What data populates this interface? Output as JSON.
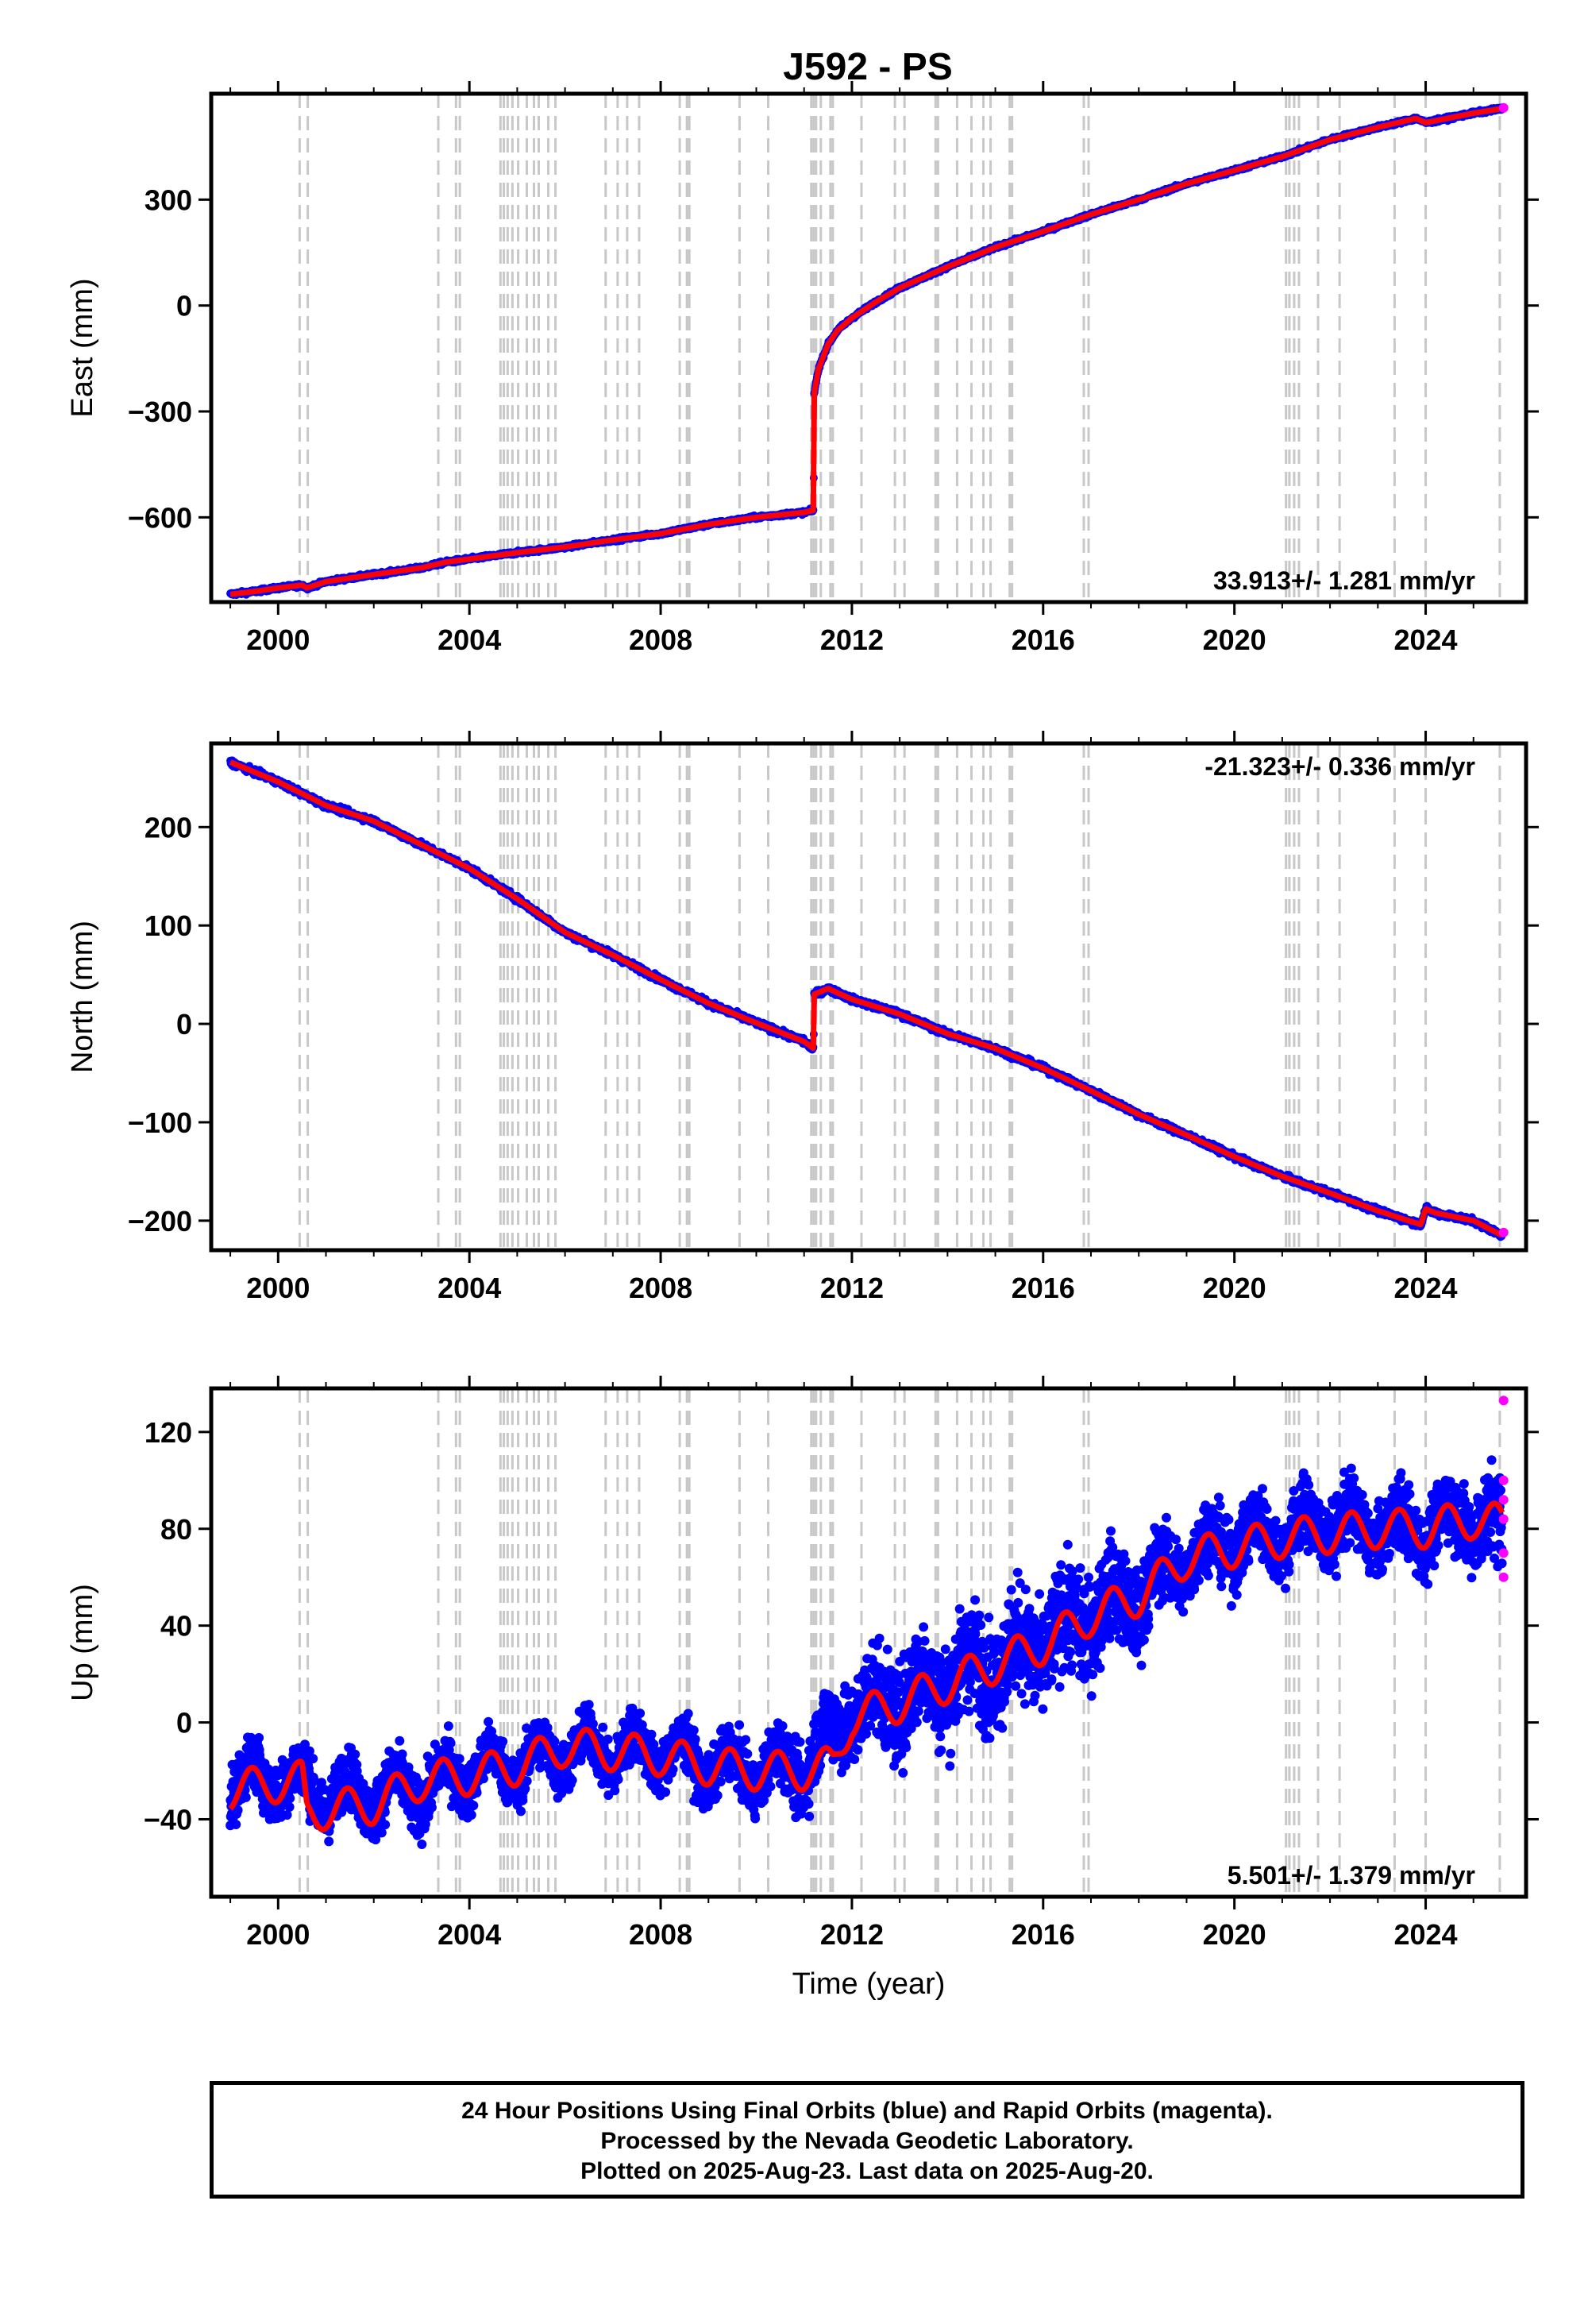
{
  "chart_data": [
    {
      "type": "scatter",
      "title": "J592 - PS",
      "ylabel": "East (mm)",
      "xlabel": "",
      "rate_label": "33.913+/- 1.281 mm/yr",
      "xlim": [
        1998.6,
        2026.1
      ],
      "ylim": [
        -840,
        600
      ],
      "xticks": [
        2000,
        2004,
        2008,
        2012,
        2016,
        2020,
        2024
      ],
      "xtick_labels": [
        "2000",
        "2004",
        "2008",
        "2012",
        "2016",
        "2020",
        "2024"
      ],
      "yticks": [
        -600,
        -300,
        0,
        300
      ],
      "ytick_labels": [
        "−600",
        "−300",
        "0",
        "300"
      ],
      "series": [
        {
          "color": "#0000ff",
          "marker": "dot",
          "x": [
            1999.0,
            1999.5,
            2000.0,
            2000.5,
            2000.6,
            2001.0,
            2002.0,
            2003.0,
            2003.5,
            2004.0,
            2005.0,
            2006.0,
            2007.0,
            2008.0,
            2009.0,
            2010.0,
            2011.0,
            2011.2,
            2011.21,
            2011.3,
            2011.5,
            2011.7,
            2012.0,
            2012.5,
            2013.0,
            2014.0,
            2015.0,
            2016.0,
            2017.0,
            2018.0,
            2019.0,
            2020.0,
            2021.0,
            2022.0,
            2023.0,
            2023.8,
            2024.0,
            2025.0,
            2025.6
          ],
          "y": [
            -818,
            -810,
            -800,
            -792,
            -800,
            -782,
            -762,
            -743,
            -727,
            -718,
            -700,
            -684,
            -664,
            -646,
            -620,
            -600,
            -586,
            -580,
            -250,
            -180,
            -110,
            -70,
            -35,
            10,
            50,
            110,
            165,
            210,
            258,
            300,
            345,
            383,
            422,
            470,
            505,
            530,
            518,
            545,
            558
          ]
        },
        {
          "color": "#ff0000",
          "marker": "line",
          "x": [
            1999.0,
            1999.5,
            2000.0,
            2000.5,
            2000.6,
            2001.0,
            2002.0,
            2003.0,
            2003.5,
            2004.0,
            2005.0,
            2006.0,
            2007.0,
            2008.0,
            2009.0,
            2010.0,
            2011.0,
            2011.2,
            2011.21,
            2011.3,
            2011.5,
            2011.7,
            2012.0,
            2012.5,
            2013.0,
            2014.0,
            2015.0,
            2016.0,
            2017.0,
            2018.0,
            2019.0,
            2020.0,
            2021.0,
            2022.0,
            2023.0,
            2023.8,
            2024.0,
            2025.0,
            2025.6
          ],
          "y": [
            -818,
            -810,
            -800,
            -792,
            -800,
            -782,
            -762,
            -743,
            -727,
            -718,
            -700,
            -684,
            -664,
            -646,
            -620,
            -600,
            -586,
            -580,
            -250,
            -180,
            -110,
            -70,
            -35,
            10,
            50,
            110,
            165,
            210,
            258,
            300,
            345,
            383,
            422,
            470,
            505,
            530,
            518,
            545,
            558
          ]
        },
        {
          "color": "#ff00ff",
          "marker": "dot",
          "x": [
            2025.63
          ],
          "y": [
            560
          ]
        }
      ]
    },
    {
      "type": "scatter",
      "title": "",
      "ylabel": "North (mm)",
      "xlabel": "",
      "rate_label": "-21.323+/- 0.336 mm/yr",
      "xlim": [
        1998.6,
        2026.1
      ],
      "ylim": [
        -230,
        285
      ],
      "xticks": [
        2000,
        2004,
        2008,
        2012,
        2016,
        2020,
        2024
      ],
      "xtick_labels": [
        "2000",
        "2004",
        "2008",
        "2012",
        "2016",
        "2020",
        "2024"
      ],
      "yticks": [
        -200,
        -100,
        0,
        100,
        200
      ],
      "ytick_labels": [
        "−200",
        "−100",
        "0",
        "100",
        "200"
      ],
      "series": [
        {
          "color": "#0000ff",
          "marker": "dot",
          "x": [
            1999.0,
            2000.0,
            2001.0,
            2002.0,
            2003.0,
            2004.0,
            2005.0,
            2006.0,
            2007.0,
            2008.0,
            2009.0,
            2010.0,
            2011.0,
            2011.2,
            2011.21,
            2011.5,
            2012.0,
            2013.0,
            2014.0,
            2015.0,
            2016.0,
            2017.0,
            2018.0,
            2019.0,
            2020.0,
            2021.0,
            2022.0,
            2023.0,
            2023.9,
            2024.0,
            2024.2,
            2025.0,
            2025.6
          ],
          "y": [
            266,
            246,
            222,
            206,
            182,
            158,
            127,
            93,
            70,
            45,
            21,
            1,
            -18,
            -25,
            30,
            36,
            25,
            10,
            -10,
            -25,
            -45,
            -68,
            -92,
            -113,
            -135,
            -155,
            -172,
            -190,
            -204,
            -188,
            -192,
            -200,
            -215
          ]
        },
        {
          "color": "#ff0000",
          "marker": "line",
          "x": [
            1999.0,
            2000.0,
            2001.0,
            2002.0,
            2003.0,
            2004.0,
            2005.0,
            2006.0,
            2007.0,
            2008.0,
            2009.0,
            2010.0,
            2011.0,
            2011.2,
            2011.21,
            2011.5,
            2012.0,
            2013.0,
            2014.0,
            2015.0,
            2016.0,
            2017.0,
            2018.0,
            2019.0,
            2020.0,
            2021.0,
            2022.0,
            2023.0,
            2023.9,
            2024.0,
            2024.2,
            2025.0,
            2025.6
          ],
          "y": [
            266,
            246,
            222,
            206,
            182,
            158,
            127,
            93,
            70,
            45,
            21,
            1,
            -18,
            -25,
            30,
            36,
            25,
            10,
            -10,
            -25,
            -45,
            -68,
            -92,
            -113,
            -135,
            -155,
            -172,
            -190,
            -204,
            -188,
            -192,
            -200,
            -215
          ]
        },
        {
          "color": "#ff00ff",
          "marker": "dot",
          "x": [
            2025.63
          ],
          "y": [
            -212
          ]
        }
      ]
    },
    {
      "type": "scatter",
      "title": "",
      "ylabel": "Up (mm)",
      "xlabel": "Time (year)",
      "rate_label": "5.501+/- 1.379 mm/yr",
      "xlim": [
        1998.6,
        2026.1
      ],
      "ylim": [
        -72,
        138
      ],
      "xticks": [
        2000,
        2004,
        2008,
        2012,
        2016,
        2020,
        2024
      ],
      "xtick_labels": [
        "2000",
        "2004",
        "2008",
        "2012",
        "2016",
        "2020",
        "2024"
      ],
      "yticks": [
        -40,
        0,
        40,
        80,
        120
      ],
      "ytick_labels": [
        "−40",
        "0",
        "40",
        "80",
        "120"
      ],
      "series": [
        {
          "color": "#0000ff",
          "marker": "dot",
          "note_type": "scatter_band",
          "x": [
            1999.0,
            2000.0,
            2001.0,
            2002.0,
            2003.0,
            2004.0,
            2005.0,
            2006.0,
            2007.0,
            2008.0,
            2009.0,
            2010.0,
            2011.0,
            2012.0,
            2013.0,
            2014.0,
            2015.0,
            2016.0,
            2017.0,
            2018.0,
            2019.0,
            2020.0,
            2021.0,
            2022.0,
            2023.0,
            2024.0,
            2025.0,
            2025.6
          ],
          "y": [
            -25,
            -22,
            -30,
            -30,
            -28,
            -20,
            -18,
            -12,
            -12,
            -12,
            -18,
            -20,
            -18,
            5,
            10,
            18,
            25,
            32,
            45,
            52,
            68,
            75,
            78,
            82,
            80,
            80,
            85,
            78
          ],
          "spread": [
            12,
            12,
            12,
            12,
            12,
            11,
            11,
            11,
            11,
            11,
            11,
            11,
            14,
            18,
            20,
            22,
            22,
            22,
            22,
            18,
            14,
            14,
            14,
            14,
            14,
            14,
            16,
            20
          ]
        },
        {
          "color": "#ff0000",
          "marker": "line",
          "seasonal_amplitude_mm": 8,
          "x": [
            1999.0,
            2000.0,
            2000.5,
            2000.6,
            2001.0,
            2002.0,
            2003.0,
            2004.0,
            2005.0,
            2006.0,
            2007.0,
            2008.0,
            2009.0,
            2010.0,
            2011.0,
            2011.6,
            2012.0,
            2013.0,
            2014.0,
            2015.0,
            2016.0,
            2017.0,
            2018.0,
            2019.0,
            2020.0,
            2021.0,
            2022.0,
            2023.0,
            2024.0,
            2025.0,
            2025.6
          ],
          "y": [
            -28,
            -25,
            -24,
            -38,
            -36,
            -34,
            -24,
            -22,
            -18,
            -10,
            -12,
            -14,
            -18,
            -20,
            -20,
            -18,
            2,
            8,
            16,
            24,
            32,
            44,
            52,
            68,
            72,
            76,
            78,
            80,
            80,
            84,
            82
          ]
        },
        {
          "color": "#ff00ff",
          "marker": "dot",
          "x": [
            2025.63,
            2025.63,
            2025.63,
            2025.63,
            2025.63,
            2025.63
          ],
          "y": [
            133,
            100,
            92,
            84,
            70,
            60
          ]
        }
      ]
    }
  ],
  "event_lines": [
    2000.45,
    2000.62,
    2003.35,
    2003.72,
    2003.8,
    2004.65,
    2004.72,
    2004.8,
    2004.9,
    2005.02,
    2005.2,
    2005.35,
    2005.45,
    2005.65,
    2005.8,
    2006.85,
    2007.1,
    2007.3,
    2007.55,
    2008.4,
    2008.55,
    2008.6,
    2009.65,
    2010.25,
    2011.15,
    2011.2,
    2011.25,
    2011.35,
    2011.55,
    2011.6,
    2012.2,
    2012.9,
    2013.1,
    2013.75,
    2013.8,
    2014.2,
    2014.5,
    2014.75,
    2014.9,
    2015.3,
    2015.35,
    2016.85,
    2016.95,
    2021.08,
    2021.15,
    2021.25,
    2021.35,
    2021.75,
    2022.2,
    2023.35,
    2024.0,
    2025.55
  ],
  "caption": {
    "line1": "24 Hour Positions Using Final Orbits (blue) and Rapid Orbits (magenta).",
    "line2": "Processed by the Nevada Geodetic Laboratory.",
    "line3": "Plotted on 2025-Aug-23. Last data on 2025-Aug-20."
  },
  "colors": {
    "final": "#0000ff",
    "model": "#ff0000",
    "rapid": "#ff00ff",
    "event": "#c8c8c8"
  }
}
